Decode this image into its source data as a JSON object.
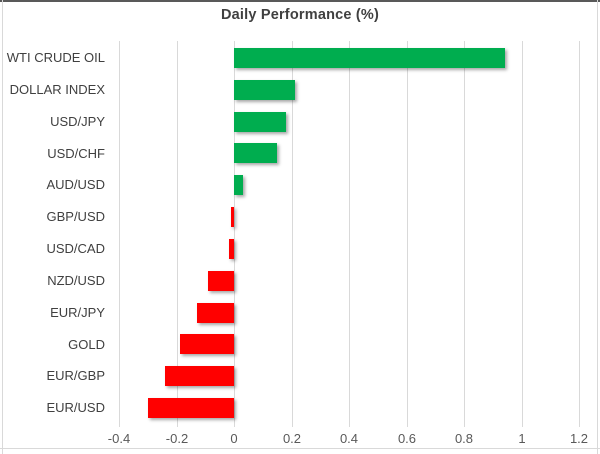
{
  "chart_data": {
    "type": "bar",
    "orientation": "horizontal",
    "title": "Daily Performance (%)",
    "categories": [
      "WTI CRUDE OIL",
      "DOLLAR INDEX",
      "USD/JPY",
      "USD/CHF",
      "AUD/USD",
      "GBP/USD",
      "USD/CAD",
      "NZD/USD",
      "EUR/JPY",
      "GOLD",
      "EUR/GBP",
      "EUR/USD"
    ],
    "values": [
      0.94,
      0.21,
      0.18,
      0.15,
      0.03,
      -0.01,
      -0.02,
      -0.09,
      -0.13,
      -0.19,
      -0.24,
      -0.3
    ],
    "xlabel": "",
    "ylabel": "",
    "xlim": [
      -0.45,
      1.22
    ],
    "x_ticks": [
      -0.4,
      -0.2,
      0,
      0.2,
      0.4,
      0.6,
      0.8,
      1,
      1.2
    ],
    "x_tick_labels": [
      "-0.4",
      "-0.2",
      "0",
      "0.2",
      "0.4",
      "0.6",
      "0.8",
      "1",
      "1.2"
    ],
    "grid": "vertical-major",
    "legend": "none",
    "colors": {
      "positive_bar": "#00AD4F",
      "negative_bar": "#FF0000",
      "gridline": "#D9D9D9",
      "title_text": "#404040",
      "category_text": "#404040",
      "tick_text": "#595959",
      "border_top": "#595959",
      "border_light": "#D9D9D9"
    }
  }
}
